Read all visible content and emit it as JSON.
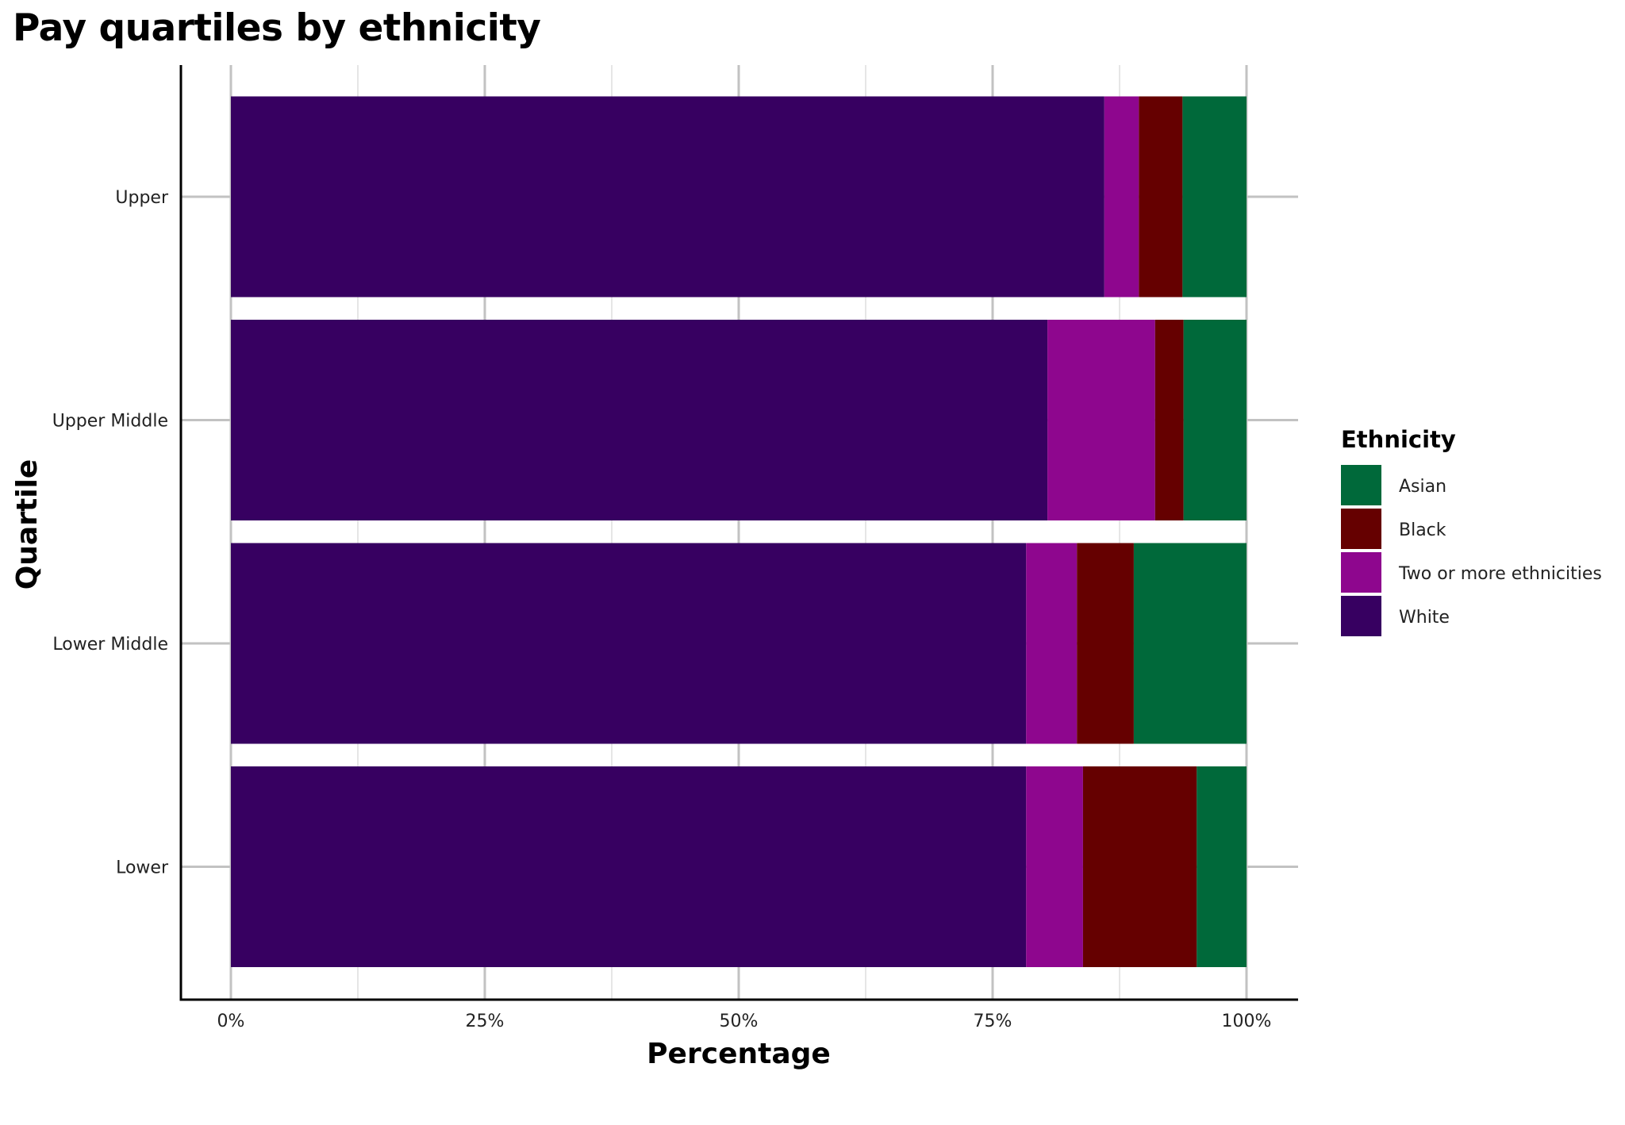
{
  "chart_data": {
    "type": "bar",
    "orientation": "horizontal",
    "stacked": true,
    "title": "Pay quartiles by ethnicity",
    "xlabel": "Percentage",
    "ylabel": "Quartile",
    "categories": [
      "Upper",
      "Upper Middle",
      "Lower Middle",
      "Lower"
    ],
    "xlim": [
      0,
      100
    ],
    "x_ticks": [
      "0%",
      "25%",
      "50%",
      "75%",
      "100%"
    ],
    "grid": true,
    "legend_title": "Ethnicity",
    "legend_position": "right",
    "legend_order": [
      "Asian",
      "Black",
      "Two or more ethnicities",
      "White"
    ],
    "series": [
      {
        "name": "White",
        "color": "#370061",
        "values": [
          86.0,
          80.4,
          78.3,
          78.3
        ]
      },
      {
        "name": "Two or more ethnicities",
        "color": "#8e068e",
        "values": [
          3.4,
          10.6,
          5.0,
          5.6
        ]
      },
      {
        "name": "Black",
        "color": "#650000",
        "values": [
          4.3,
          2.8,
          5.6,
          11.2
        ]
      },
      {
        "name": "Asian",
        "color": "#00693a",
        "values": [
          6.3,
          6.2,
          11.1,
          4.9
        ]
      }
    ]
  }
}
